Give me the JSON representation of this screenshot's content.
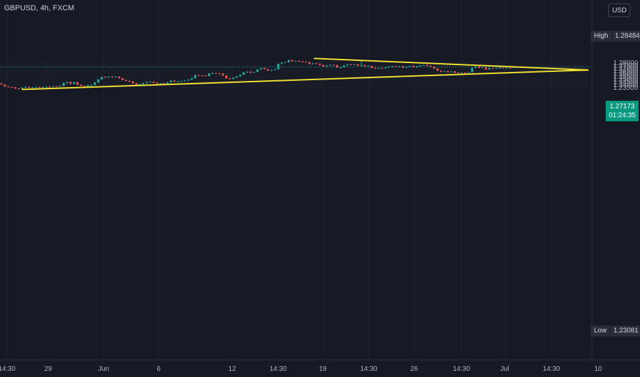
{
  "header": {
    "symbol": "GBPUSD, 4h, FXCM",
    "currency_button": "USD"
  },
  "high_tag": {
    "label": "High",
    "value": "1.28484"
  },
  "low_tag": {
    "label": "Low",
    "value": "1.23081"
  },
  "last_price": {
    "value": "1.27173",
    "countdown": "01:24:35"
  },
  "colors": {
    "background": "#161a25",
    "up": "#26a69a",
    "down": "#ef5350",
    "trendline": "#f5e331",
    "grid": "#1f2330",
    "axis_text": "#b2b5be"
  },
  "chart_data": {
    "type": "candlestick",
    "title": "GBPUSD, 4h, FXCM",
    "y_tick_labels": [
      "1.28000",
      "1.27500",
      "1.27000",
      "1.26500",
      "1.26000",
      "1.25500",
      "1.25000",
      "1.24500",
      "1.24000",
      "1.23500"
    ],
    "x_tick_labels": [
      "14:30",
      "29",
      "Jun",
      "6",
      "12",
      "14:30",
      "19",
      "14:30",
      "26",
      "14:30",
      "Jul",
      "14:30",
      "10"
    ],
    "ylim": [
      1.2255,
      1.2915
    ],
    "grid": true,
    "last_price": 1.27173,
    "high": 1.28484,
    "low": 1.23081,
    "trendlines": [
      {
        "name": "upper",
        "points": [
          [
            "Jun 17 20:00",
            1.2872
          ],
          [
            "Jul 8 20:00",
            1.2661
          ]
        ]
      },
      {
        "name": "lower",
        "points": [
          [
            "May 24 08:00",
            1.2306
          ],
          [
            "Jul 8 20:00",
            1.2661
          ]
        ]
      }
    ],
    "candles_ohlc": [
      [
        1.2412,
        1.243,
        1.239,
        1.2395
      ],
      [
        1.2395,
        1.24,
        1.2355,
        1.2362
      ],
      [
        1.2362,
        1.2375,
        1.2345,
        1.235
      ],
      [
        1.235,
        1.2358,
        1.2335,
        1.2345
      ],
      [
        1.2345,
        1.235,
        1.2318,
        1.2322
      ],
      [
        1.2322,
        1.2335,
        1.2305,
        1.2312
      ],
      [
        1.2312,
        1.2345,
        1.231,
        1.234
      ],
      [
        1.234,
        1.236,
        1.233,
        1.2355
      ],
      [
        1.2355,
        1.236,
        1.233,
        1.2338
      ],
      [
        1.2338,
        1.2352,
        1.2328,
        1.2348
      ],
      [
        1.2348,
        1.2362,
        1.234,
        1.2352
      ],
      [
        1.2352,
        1.2358,
        1.2335,
        1.234
      ],
      [
        1.234,
        1.2355,
        1.2335,
        1.235
      ],
      [
        1.235,
        1.2365,
        1.2342,
        1.236
      ],
      [
        1.236,
        1.2368,
        1.2345,
        1.2352
      ],
      [
        1.2352,
        1.237,
        1.2348,
        1.2365
      ],
      [
        1.2365,
        1.2372,
        1.2355,
        1.2362
      ],
      [
        1.2362,
        1.238,
        1.2355,
        1.2372
      ],
      [
        1.2372,
        1.2432,
        1.2365,
        1.2425
      ],
      [
        1.2425,
        1.2455,
        1.241,
        1.244
      ],
      [
        1.244,
        1.245,
        1.24,
        1.2408
      ],
      [
        1.2408,
        1.2445,
        1.24,
        1.2438
      ],
      [
        1.2438,
        1.2448,
        1.2385,
        1.2392
      ],
      [
        1.2392,
        1.24,
        1.2365,
        1.2372
      ],
      [
        1.2372,
        1.238,
        1.234,
        1.235
      ],
      [
        1.235,
        1.239,
        1.2345,
        1.2382
      ],
      [
        1.2382,
        1.2395,
        1.237,
        1.2388
      ],
      [
        1.2388,
        1.244,
        1.238,
        1.2432
      ],
      [
        1.2432,
        1.2495,
        1.2425,
        1.2488
      ],
      [
        1.2488,
        1.254,
        1.248,
        1.2535
      ],
      [
        1.2535,
        1.2545,
        1.2515,
        1.2525
      ],
      [
        1.2525,
        1.2548,
        1.252,
        1.254
      ],
      [
        1.254,
        1.2545,
        1.252,
        1.253
      ],
      [
        1.253,
        1.2545,
        1.2525,
        1.2538
      ],
      [
        1.2538,
        1.2545,
        1.2505,
        1.2512
      ],
      [
        1.2512,
        1.252,
        1.247,
        1.2478
      ],
      [
        1.2478,
        1.249,
        1.2455,
        1.2462
      ],
      [
        1.2462,
        1.247,
        1.244,
        1.2448
      ],
      [
        1.2448,
        1.246,
        1.241,
        1.2418
      ],
      [
        1.2418,
        1.243,
        1.2375,
        1.238
      ],
      [
        1.238,
        1.241,
        1.2375,
        1.2402
      ],
      [
        1.2402,
        1.243,
        1.2395,
        1.2422
      ],
      [
        1.2422,
        1.2445,
        1.2415,
        1.244
      ],
      [
        1.244,
        1.2455,
        1.2432,
        1.2448
      ],
      [
        1.2448,
        1.2455,
        1.242,
        1.2428
      ],
      [
        1.2428,
        1.244,
        1.24,
        1.2408
      ],
      [
        1.2408,
        1.2425,
        1.24,
        1.2418
      ],
      [
        1.2418,
        1.2428,
        1.2405,
        1.241
      ],
      [
        1.241,
        1.244,
        1.2408,
        1.2435
      ],
      [
        1.2435,
        1.2475,
        1.243,
        1.2468
      ],
      [
        1.2468,
        1.2478,
        1.244,
        1.245
      ],
      [
        1.245,
        1.2462,
        1.2438,
        1.2455
      ],
      [
        1.2455,
        1.2468,
        1.2448,
        1.2462
      ],
      [
        1.2462,
        1.2478,
        1.2455,
        1.247
      ],
      [
        1.247,
        1.249,
        1.2462,
        1.2485
      ],
      [
        1.2485,
        1.252,
        1.2478,
        1.2512
      ],
      [
        1.2512,
        1.2575,
        1.2505,
        1.2568
      ],
      [
        1.2568,
        1.258,
        1.2555,
        1.2562
      ],
      [
        1.2562,
        1.2575,
        1.255,
        1.2558
      ],
      [
        1.2558,
        1.257,
        1.254,
        1.2548
      ],
      [
        1.2548,
        1.2605,
        1.2545,
        1.2598
      ],
      [
        1.2598,
        1.2612,
        1.2588,
        1.2605
      ],
      [
        1.2605,
        1.2612,
        1.2595,
        1.26
      ],
      [
        1.26,
        1.261,
        1.2585,
        1.2592
      ],
      [
        1.2592,
        1.2605,
        1.2555,
        1.256
      ],
      [
        1.256,
        1.2565,
        1.2505,
        1.251
      ],
      [
        1.251,
        1.2515,
        1.2488,
        1.2495
      ],
      [
        1.2495,
        1.253,
        1.249,
        1.2522
      ],
      [
        1.2522,
        1.255,
        1.2515,
        1.2545
      ],
      [
        1.2545,
        1.258,
        1.254,
        1.2575
      ],
      [
        1.2575,
        1.2625,
        1.257,
        1.2618
      ],
      [
        1.2618,
        1.2638,
        1.2605,
        1.263
      ],
      [
        1.263,
        1.264,
        1.2605,
        1.2612
      ],
      [
        1.2612,
        1.2632,
        1.2608,
        1.2625
      ],
      [
        1.2625,
        1.268,
        1.262,
        1.2672
      ],
      [
        1.2672,
        1.27,
        1.2665,
        1.2695
      ],
      [
        1.2695,
        1.2705,
        1.2668,
        1.2675
      ],
      [
        1.2675,
        1.2682,
        1.264,
        1.2648
      ],
      [
        1.2648,
        1.2665,
        1.264,
        1.266
      ],
      [
        1.266,
        1.268,
        1.265,
        1.2672
      ],
      [
        1.2672,
        1.278,
        1.2668,
        1.2772
      ],
      [
        1.2772,
        1.28,
        1.2765,
        1.2792
      ],
      [
        1.2792,
        1.2812,
        1.2785,
        1.2802
      ],
      [
        1.2802,
        1.2848,
        1.2798,
        1.284
      ],
      [
        1.284,
        1.2848,
        1.2815,
        1.282
      ],
      [
        1.282,
        1.2832,
        1.2812,
        1.2825
      ],
      [
        1.2825,
        1.2835,
        1.2808,
        1.2815
      ],
      [
        1.2815,
        1.2825,
        1.2798,
        1.281
      ],
      [
        1.281,
        1.282,
        1.2795,
        1.28
      ],
      [
        1.28,
        1.281,
        1.2765,
        1.277
      ],
      [
        1.277,
        1.279,
        1.2762,
        1.2782
      ],
      [
        1.2782,
        1.2795,
        1.2768,
        1.2775
      ],
      [
        1.2775,
        1.2782,
        1.2745,
        1.2752
      ],
      [
        1.2752,
        1.276,
        1.272,
        1.2728
      ],
      [
        1.2728,
        1.275,
        1.2722,
        1.2742
      ],
      [
        1.2742,
        1.276,
        1.2735,
        1.2755
      ],
      [
        1.2755,
        1.2765,
        1.274,
        1.2748
      ],
      [
        1.2748,
        1.2762,
        1.27,
        1.2708
      ],
      [
        1.2708,
        1.272,
        1.2692,
        1.2712
      ],
      [
        1.2712,
        1.275,
        1.2705,
        1.2745
      ],
      [
        1.2745,
        1.277,
        1.274,
        1.2765
      ],
      [
        1.2765,
        1.2775,
        1.275,
        1.2758
      ],
      [
        1.2758,
        1.277,
        1.2752,
        1.2765
      ],
      [
        1.2765,
        1.277,
        1.2735,
        1.274
      ],
      [
        1.274,
        1.2848,
        1.273,
        1.275
      ],
      [
        1.275,
        1.276,
        1.272,
        1.2728
      ],
      [
        1.2728,
        1.274,
        1.272,
        1.2732
      ],
      [
        1.2732,
        1.2738,
        1.2695,
        1.27
      ],
      [
        1.27,
        1.2708,
        1.2682,
        1.2688
      ],
      [
        1.2688,
        1.27,
        1.268,
        1.2695
      ],
      [
        1.2695,
        1.2705,
        1.2685,
        1.269
      ],
      [
        1.269,
        1.2712,
        1.2688,
        1.2708
      ],
      [
        1.2708,
        1.2728,
        1.27,
        1.2722
      ],
      [
        1.2722,
        1.2735,
        1.271,
        1.273
      ],
      [
        1.273,
        1.2738,
        1.2712,
        1.2718
      ],
      [
        1.2718,
        1.2732,
        1.2712,
        1.2728
      ],
      [
        1.2728,
        1.2735,
        1.2698,
        1.2705
      ],
      [
        1.2705,
        1.2725,
        1.27,
        1.272
      ],
      [
        1.272,
        1.2738,
        1.2715,
        1.2735
      ],
      [
        1.2735,
        1.2745,
        1.2708,
        1.2712
      ],
      [
        1.2712,
        1.2735,
        1.2705,
        1.273
      ],
      [
        1.273,
        1.2752,
        1.2722,
        1.2748
      ],
      [
        1.2748,
        1.276,
        1.274,
        1.2755
      ],
      [
        1.2755,
        1.276,
        1.2732,
        1.2738
      ],
      [
        1.2738,
        1.2745,
        1.2715,
        1.272
      ],
      [
        1.272,
        1.2725,
        1.268,
        1.2688
      ],
      [
        1.2688,
        1.2692,
        1.264,
        1.2648
      ],
      [
        1.2648,
        1.2655,
        1.262,
        1.2628
      ],
      [
        1.2628,
        1.2648,
        1.2622,
        1.264
      ],
      [
        1.264,
        1.2648,
        1.2615,
        1.2622
      ],
      [
        1.2622,
        1.264,
        1.2608,
        1.2635
      ],
      [
        1.2635,
        1.2642,
        1.2605,
        1.2612
      ],
      [
        1.2612,
        1.2622,
        1.26,
        1.2605
      ],
      [
        1.2605,
        1.2618,
        1.2598,
        1.2612
      ],
      [
        1.2612,
        1.2618,
        1.26,
        1.2606
      ],
      [
        1.2606,
        1.2625,
        1.2602,
        1.262
      ],
      [
        1.262,
        1.2708,
        1.2615,
        1.27
      ],
      [
        1.27,
        1.2728,
        1.269,
        1.2722
      ],
      [
        1.2722,
        1.2732,
        1.2695,
        1.27
      ],
      [
        1.27,
        1.2712,
        1.269,
        1.2708
      ],
      [
        1.2708,
        1.2715,
        1.2662,
        1.267
      ],
      [
        1.267,
        1.2702,
        1.2665,
        1.2695
      ],
      [
        1.2695,
        1.27,
        1.2685,
        1.269
      ],
      [
        1.269,
        1.2702,
        1.2685,
        1.2698
      ],
      [
        1.2698,
        1.2725,
        1.2692,
        1.27
      ],
      [
        1.27,
        1.2705,
        1.269,
        1.2695
      ],
      [
        1.2695,
        1.272,
        1.269,
        1.27
      ],
      [
        1.27,
        1.2705,
        1.2692,
        1.2698
      ],
      [
        1.2698,
        1.2726,
        1.2695,
        1.2717
      ]
    ]
  }
}
